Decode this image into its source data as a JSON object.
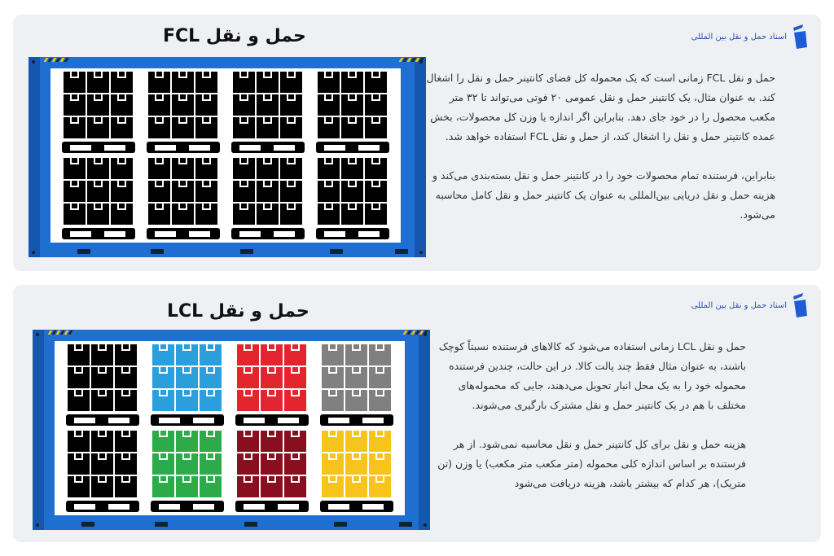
{
  "brand": {
    "name": "اسناد حمل و نقل بین المللی",
    "color": "#1e5bd6",
    "icon": "brand-logo-icon"
  },
  "fcl": {
    "title": "حمل و نقل FCL",
    "paragraphs": [
      "حمل و نقل FCL زمانی است که یک محموله کل فضای کانتینر حمل و نقل را اشغال کند. به عنوان مثال، یک کانتینر حمل و نقل عمومی ۲۰ فوتی می‌تواند تا ۳۲ متر مکعب محصول را در خود جای دهد. بنابراین اگر اندازه یا وزن کل محصولات، بخش عمده کانتینر حمل و نقل را اشغال کند، از حمل و نقل FCL استفاده خواهد شد.",
      "بنابراین، فرستنده تمام محصولات خود را در کانتینر حمل و نقل بسته‌بندی می‌کند و هزینه حمل و نقل دریایی بین‌المللی به عنوان یک کانتینر حمل و نقل کامل محاسبه می‌شود."
    ],
    "pallet_colors": [
      "#000000",
      "#000000",
      "#000000",
      "#000000",
      "#000000",
      "#000000",
      "#000000",
      "#000000"
    ]
  },
  "lcl": {
    "title": "حمل و نقل LCL",
    "paragraphs": [
      "حمل و نقل LCL زمانی استفاده می‌شود که کالاهای فرستنده نسبتاً کوچک باشند، به عنوان مثال فقط چند پالت کالا. در این حالت، چندین فرستنده محموله خود را به یک محل انبار تحویل می‌دهند، جایی که محموله‌های مختلف با هم در یک کانتینر حمل و نقل مشترک بارگیری می‌شوند.",
      "هزینه حمل و نقل برای کل کانتینر حمل و نقل محاسبه نمی‌شود. از هر فرستنده بر اساس اندازه کلی محموله (متر مکعب متر مکعب) یا وزن (تن متریک)، هر کدام که بیشتر باشد، هزینه دریافت می‌شود"
    ],
    "pallet_colors": [
      "#000000",
      "#2a9fdc",
      "#e3262d",
      "#808080",
      "#000000",
      "#2daa4a",
      "#8a0f1e",
      "#f6c41a"
    ]
  },
  "colors": {
    "container": "#1f6fd1",
    "container_dark": "#1557b0",
    "card": "#eef0f4"
  }
}
